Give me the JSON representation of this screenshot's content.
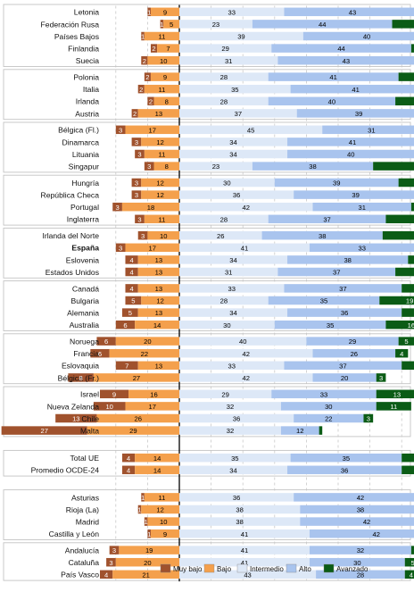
{
  "chart_data": {
    "type": "bar",
    "orientation": "horizontal",
    "stacked": true,
    "baseline_note": "Bars diverge at the boundary between 'Bajo' and 'Intermedio'; 'Muy bajo' and 'Bajo' extend left of the vertical line.",
    "x_range": [
      -32,
      72
    ],
    "series": [
      {
        "name": "Muy bajo",
        "color": "#a0522d"
      },
      {
        "name": "Bajo",
        "color": "#f4a04c"
      },
      {
        "name": "Intermedio",
        "color": "#dde8f7"
      },
      {
        "name": "Alto",
        "color": "#a9c4ee"
      },
      {
        "name": "Avanzado",
        "color": "#0b5c16"
      }
    ],
    "legend": {
      "position": "bottom",
      "items": [
        "Muy bajo",
        "Bajo",
        "Intermedio",
        "Alto",
        "Avanzado"
      ]
    },
    "groups": [
      {
        "rows": [
          {
            "label": "Letonia",
            "values": [
              1,
              9,
              33,
              43,
              14
            ]
          },
          {
            "label": "Federación Rusa",
            "values": [
              1,
              5,
              23,
              44,
              26
            ]
          },
          {
            "label": "Países Bajos",
            "values": [
              1,
              11,
              39,
              40,
              8
            ]
          },
          {
            "label": "Finlandia",
            "values": [
              2,
              7,
              29,
              44,
              18
            ]
          },
          {
            "label": "Suecia",
            "values": [
              2,
              10,
              31,
              43,
              14
            ]
          }
        ]
      },
      {
        "rows": [
          {
            "label": "Polonia",
            "values": [
              2,
              9,
              28,
              41,
              20
            ]
          },
          {
            "label": "Italia",
            "values": [
              2,
              11,
              35,
              41,
              11
            ]
          },
          {
            "label": "Irlanda",
            "values": [
              2,
              8,
              28,
              40,
              21
            ]
          },
          {
            "label": "Austria",
            "values": [
              2,
              13,
              37,
              39,
              8
            ]
          }
        ]
      },
      {
        "rows": [
          {
            "label": "Bélgica (Fl.)",
            "values": [
              3,
              17,
              45,
              31,
              4
            ]
          },
          {
            "label": "Dinamarca",
            "values": [
              3,
              12,
              34,
              41,
              11
            ]
          },
          {
            "label": "Lituania",
            "values": [
              3,
              11,
              34,
              40,
              12
            ]
          },
          {
            "label": "Singapur",
            "values": [
              3,
              8,
              23,
              38,
              29
            ]
          }
        ]
      },
      {
        "rows": [
          {
            "label": "Hungría",
            "values": [
              3,
              12,
              30,
              39,
              17
            ]
          },
          {
            "label": "República Checa",
            "values": [
              3,
              12,
              36,
              39,
              10
            ]
          },
          {
            "label": "Portugal",
            "values": [
              3,
              18,
              42,
              31,
              7
            ]
          },
          {
            "label": "Inglaterra",
            "values": [
              3,
              11,
              28,
              37,
              20
            ]
          }
        ]
      },
      {
        "rows": [
          {
            "label": "Irlanda del Norte",
            "values": [
              3,
              10,
              26,
              38,
              22
            ]
          },
          {
            "label": "España",
            "values": [
              3,
              17,
              41,
              33,
              6
            ],
            "bold": true
          },
          {
            "label": "Eslovenia",
            "values": [
              4,
              13,
              34,
              38,
              11
            ]
          },
          {
            "label": "Estados Unidos",
            "values": [
              4,
              13,
              31,
              37,
              16
            ]
          }
        ]
      },
      {
        "rows": [
          {
            "label": "Canadá",
            "values": [
              4,
              13,
              33,
              37,
              13
            ]
          },
          {
            "label": "Bulgaria",
            "values": [
              5,
              12,
              28,
              35,
              19
            ]
          },
          {
            "label": "Alemania",
            "values": [
              5,
              13,
              34,
              36,
              11
            ]
          },
          {
            "label": "Australia",
            "values": [
              6,
              14,
              30,
              35,
              16
            ]
          }
        ]
      },
      {
        "rows": [
          {
            "label": "Noruega",
            "values": [
              6,
              20,
              40,
              29,
              5
            ]
          },
          {
            "label": "Francia",
            "values": [
              6,
              22,
              42,
              26,
              4
            ]
          },
          {
            "label": "Eslovaquia",
            "values": [
              7,
              13,
              33,
              37,
              10
            ]
          },
          {
            "label": "Bélgica (Fr.)",
            "values": [
              8,
              27,
              42,
              20,
              3
            ]
          }
        ]
      },
      {
        "rows": [
          {
            "label": "Israel",
            "values": [
              9,
              16,
              29,
              33,
              13
            ]
          },
          {
            "label": "Nueva Zelanda",
            "values": [
              10,
              17,
              32,
              30,
              11
            ]
          },
          {
            "label": "Chile",
            "values": [
              13,
              26,
              36,
              22,
              3
            ]
          },
          {
            "label": "Malta",
            "values": [
              27,
              29,
              32,
              12,
              1
            ]
          }
        ]
      },
      {
        "rows": [
          {
            "label": "Total UE",
            "values": [
              4,
              14,
              35,
              35,
              11
            ]
          },
          {
            "label": "Promedio OCDE-24",
            "values": [
              4,
              14,
              34,
              36,
              12
            ]
          }
        ]
      },
      {
        "rows": [
          {
            "label": "Asturias",
            "values": [
              1,
              11,
              36,
              42,
              9
            ]
          },
          {
            "label": "Rioja (La)",
            "values": [
              1,
              12,
              38,
              38,
              10
            ]
          },
          {
            "label": "Madrid",
            "values": [
              1,
              10,
              38,
              42,
              9
            ]
          },
          {
            "label": "Castilla y León",
            "values": [
              1,
              9,
              41,
              42,
              7
            ]
          }
        ]
      },
      {
        "rows": [
          {
            "label": "Andalucía",
            "values": [
              3,
              19,
              41,
              32,
              5
            ]
          },
          {
            "label": "Cataluña",
            "values": [
              3,
              20,
              41,
              30,
              5
            ]
          },
          {
            "label": "País Vasco",
            "values": [
              4,
              21,
              43,
              28,
              4
            ]
          }
        ]
      }
    ]
  }
}
